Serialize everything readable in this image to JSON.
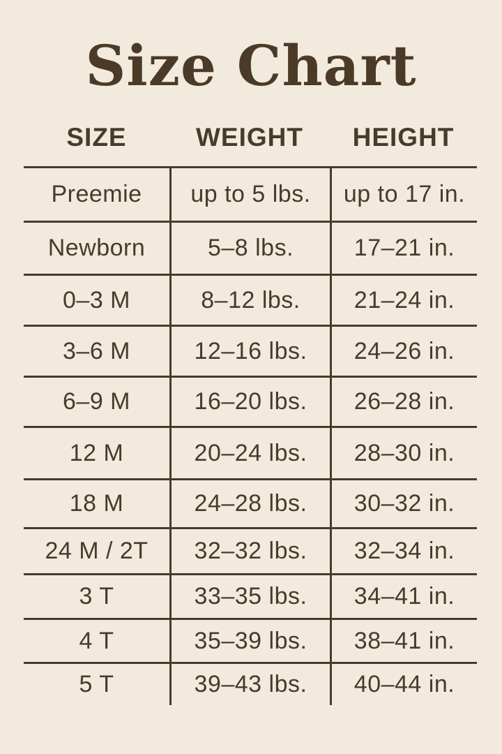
{
  "title": "Size Chart",
  "colors": {
    "background": "#f2ebdd",
    "ink": "#473b2b",
    "title": "#4b3a27"
  },
  "chart_data": {
    "type": "table",
    "title": "Size Chart",
    "columns": [
      "SIZE",
      "WEIGHT",
      "HEIGHT"
    ],
    "rows": [
      {
        "size": "Preemie",
        "weight": "up to 5 lbs.",
        "height": "up to 17 in."
      },
      {
        "size": "Newborn",
        "weight": "5–8 lbs.",
        "height": "17–21 in."
      },
      {
        "size": "0–3 M",
        "weight": "8–12 lbs.",
        "height": "21–24 in."
      },
      {
        "size": "3–6 M",
        "weight": "12–16 lbs.",
        "height": "24–26 in."
      },
      {
        "size": "6–9 M",
        "weight": "16–20 lbs.",
        "height": "26–28 in."
      },
      {
        "size": "12 M",
        "weight": "20–24 lbs.",
        "height": "28–30 in."
      },
      {
        "size": "18 M",
        "weight": "24–28 lbs.",
        "height": "30–32 in."
      },
      {
        "size": "24 M / 2T",
        "weight": "32–32 lbs.",
        "height": "32–34 in."
      },
      {
        "size": "3 T",
        "weight": "33–35 lbs.",
        "height": "34–41 in."
      },
      {
        "size": "4 T",
        "weight": "35–39 lbs.",
        "height": "38–41 in."
      },
      {
        "size": "5 T",
        "weight": "39–43 lbs.",
        "height": "40–44 in."
      }
    ]
  }
}
